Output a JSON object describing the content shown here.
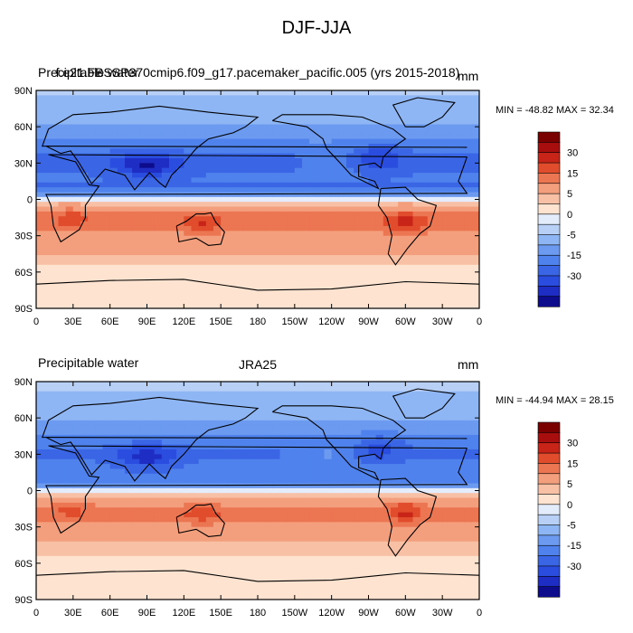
{
  "title": "DJF-JJA",
  "colors": {
    "levels": [
      -35,
      -30,
      -25,
      -20,
      -15,
      -10,
      -5,
      -2.5,
      0,
      2.5,
      5,
      10,
      15,
      20,
      25,
      30
    ],
    "fills": [
      "#0c0c8c",
      "#1e2ec4",
      "#2a4de0",
      "#3a66e6",
      "#4f82ec",
      "#6b9af0",
      "#8fb6f4",
      "#b9d0f6",
      "#e2ecfa",
      "#fde3d0",
      "#f8c0a4",
      "#f39e7c",
      "#ec7552",
      "#e04c2c",
      "#c82418",
      "#a80e0e",
      "#7a0000"
    ]
  },
  "panels": [
    {
      "left_label": "Precipitable water",
      "center_label": "f.e21.FBSSP370cmip6.f09_g17.pacemaker_pacific.005 (yrs 2015-2018)",
      "units": "mm",
      "min_max": "MIN = -48.82  MAX =  32.34",
      "colorbar_ticks": [
        "30",
        "15",
        "5",
        "0",
        "-5",
        "-15",
        "-30"
      ]
    },
    {
      "left_label": "Precipitable water",
      "center_label": "JRA25",
      "units": "mm",
      "min_max": "MIN = -44.94  MAX =  28.15",
      "colorbar_ticks": [
        "30",
        "15",
        "5",
        "0",
        "-5",
        "-15",
        "-30"
      ]
    }
  ],
  "chart_data": [
    {
      "type": "heatmap",
      "title": "DJF-JJA",
      "subtitle": "f.e21.FBSSP370cmip6.f09_g17.pacemaker_pacific.005 (yrs 2015-2018)",
      "variable": "Precipitable water",
      "units": "mm",
      "x_ticks": [
        "0",
        "30E",
        "60E",
        "90E",
        "120E",
        "150E",
        "180",
        "150W",
        "120W",
        "90W",
        "60W",
        "30W",
        "0"
      ],
      "y_ticks": [
        "90N",
        "60N",
        "30N",
        "0",
        "30S",
        "60S",
        "90S"
      ],
      "xlim": [
        0,
        360
      ],
      "ylim": [
        -90,
        90
      ],
      "min": -48.82,
      "max": 32.34,
      "zones": [
        {
          "lat": 75,
          "value": -10
        },
        {
          "lat": 45,
          "value": -20
        },
        {
          "lat": 20,
          "value": -25
        },
        {
          "lat": 8,
          "value": -18
        },
        {
          "lat": -15,
          "value": 12
        },
        {
          "lat": -35,
          "value": 5
        },
        {
          "lat": -70,
          "value": 2
        }
      ]
    },
    {
      "type": "heatmap",
      "title": "DJF-JJA",
      "subtitle": "JRA25",
      "variable": "Precipitable water",
      "units": "mm",
      "x_ticks": [
        "0",
        "30E",
        "60E",
        "90E",
        "120E",
        "150E",
        "180",
        "150W",
        "120W",
        "90W",
        "60W",
        "30W",
        "0"
      ],
      "y_ticks": [
        "90N",
        "60N",
        "30N",
        "0",
        "30S",
        "60S",
        "90S"
      ],
      "xlim": [
        0,
        360
      ],
      "ylim": [
        -90,
        90
      ],
      "min": -44.94,
      "max": 28.15,
      "zones": [
        {
          "lat": 75,
          "value": -8
        },
        {
          "lat": 45,
          "value": -18
        },
        {
          "lat": 20,
          "value": -22
        },
        {
          "lat": 8,
          "value": -15
        },
        {
          "lat": -15,
          "value": 10
        },
        {
          "lat": -35,
          "value": 4
        },
        {
          "lat": -70,
          "value": 2
        }
      ]
    }
  ]
}
